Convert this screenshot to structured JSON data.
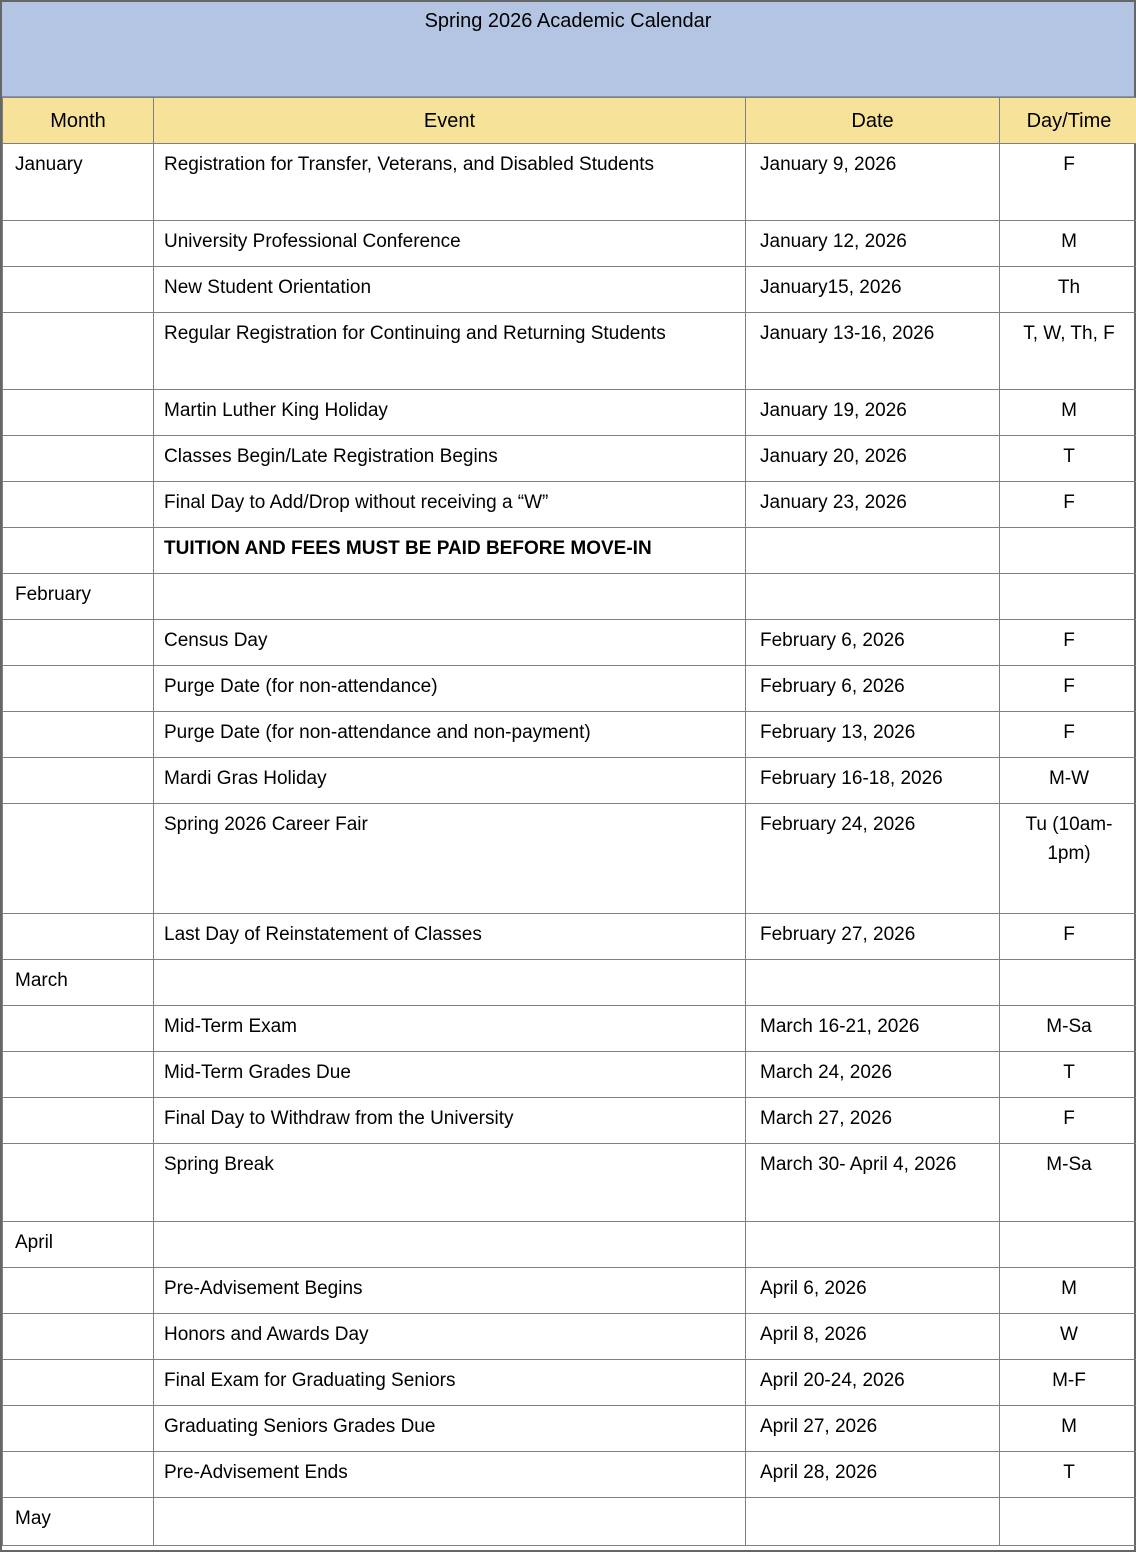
{
  "title": "Spring 2026 Academic Calendar",
  "columns": [
    "Month",
    "Event",
    "Date",
    "Day/Time"
  ],
  "colors": {
    "title_bg": "#b4c5e4",
    "header_bg": "#f7e29a",
    "border": "#808080",
    "text": "#000000"
  },
  "rows": [
    {
      "month": "January",
      "event": "Registration for Transfer, Veterans, and Disabled Students",
      "date": "January 9, 2026",
      "day": "F"
    },
    {
      "month": "",
      "event": "University Professional Conference",
      "date": "January 12, 2026",
      "day": "M"
    },
    {
      "month": "",
      "event": "New Student Orientation",
      "date": "January15, 2026",
      "day": "Th"
    },
    {
      "month": "",
      "event": "Regular Registration for Continuing and Returning Students",
      "date": "January 13-16, 2026",
      "day": "T, W, Th, F"
    },
    {
      "month": "",
      "event": "Martin Luther King Holiday",
      "date": "January 19, 2026",
      "day": "M"
    },
    {
      "month": "",
      "event": "Classes Begin/Late Registration Begins",
      "date": "January 20, 2026",
      "day": "T"
    },
    {
      "month": "",
      "event": "Final Day to Add/Drop without receiving a “W”",
      "date": "January 23, 2026",
      "day": "F"
    },
    {
      "month": "",
      "event": "TUITION AND FEES MUST BE PAID BEFORE MOVE-IN",
      "date": "",
      "day": "",
      "bold": true
    },
    {
      "month": "February",
      "event": "",
      "date": "",
      "day": ""
    },
    {
      "month": "",
      "event": "Census Day",
      "date": "February 6, 2026",
      "day": "F"
    },
    {
      "month": "",
      "event": "Purge Date (for non-attendance)",
      "date": "February 6, 2026",
      "day": "F"
    },
    {
      "month": "",
      "event": "Purge Date (for non-attendance and non-payment)",
      "date": "February 13, 2026",
      "day": "F"
    },
    {
      "month": "",
      "event": "Mardi Gras Holiday",
      "date": "February 16-18, 2026",
      "day": "M-W"
    },
    {
      "month": "",
      "event": "Spring 2026 Career Fair",
      "date": "February 24, 2026",
      "day": "Tu (10am-1pm)"
    },
    {
      "month": "",
      "event": "Last Day of Reinstatement of Classes",
      "date": "February 27, 2026",
      "day": "F"
    },
    {
      "month": "March",
      "event": "",
      "date": "",
      "day": ""
    },
    {
      "month": "",
      "event": "Mid-Term Exam",
      "date": "March 16-21, 2026",
      "day": "M-Sa"
    },
    {
      "month": "",
      "event": "Mid-Term Grades Due",
      "date": "March 24, 2026",
      "day": "T"
    },
    {
      "month": "",
      "event": "Final Day to Withdraw from the University",
      "date": "March 27, 2026",
      "day": "F"
    },
    {
      "month": "",
      "event": "Spring Break",
      "date": "March 30- April 4, 2026",
      "day": "M-Sa"
    },
    {
      "month": "April",
      "event": "",
      "date": "",
      "day": ""
    },
    {
      "month": "",
      "event": "Pre-Advisement Begins",
      "date": "April 6, 2026",
      "day": "M"
    },
    {
      "month": "",
      "event": "Honors and Awards Day",
      "date": "April 8, 2026",
      "day": "W"
    },
    {
      "month": "",
      "event": "Final Exam for Graduating Seniors",
      "date": "April 20-24, 2026",
      "day": "M-F"
    },
    {
      "month": "",
      "event": "Graduating Seniors Grades Due",
      "date": "April 27, 2026",
      "day": "M"
    },
    {
      "month": "",
      "event": "Pre-Advisement Ends",
      "date": "April 28, 2026",
      "day": "T"
    },
    {
      "month": "May",
      "event": "",
      "date": "",
      "day": ""
    }
  ]
}
